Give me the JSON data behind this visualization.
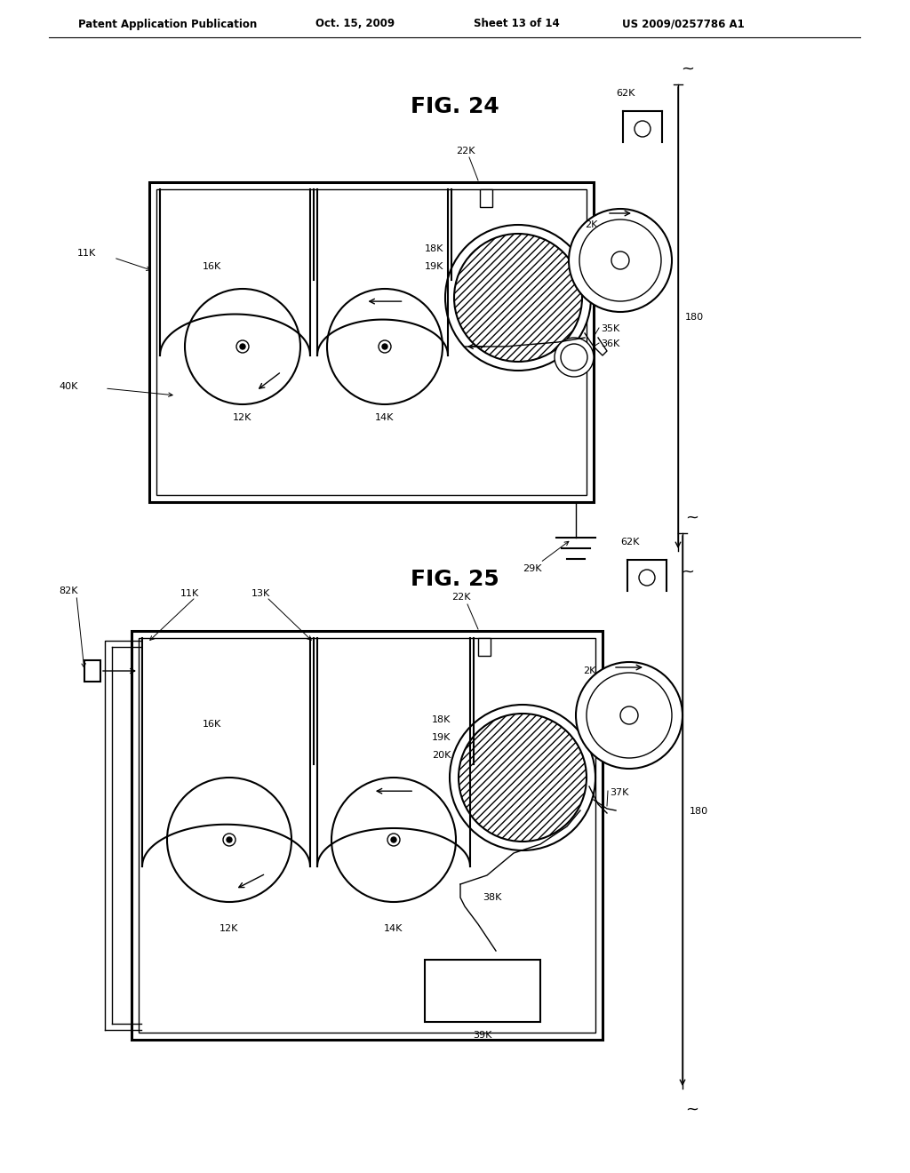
{
  "title": "Patent Application Publication",
  "date": "Oct. 15, 2009",
  "sheet": "Sheet 13 of 14",
  "patent_num": "US 2009/0257786 A1",
  "fig24_title": "FIG. 24",
  "fig25_title": "FIG. 25",
  "bg_color": "#ffffff",
  "line_color": "#000000"
}
